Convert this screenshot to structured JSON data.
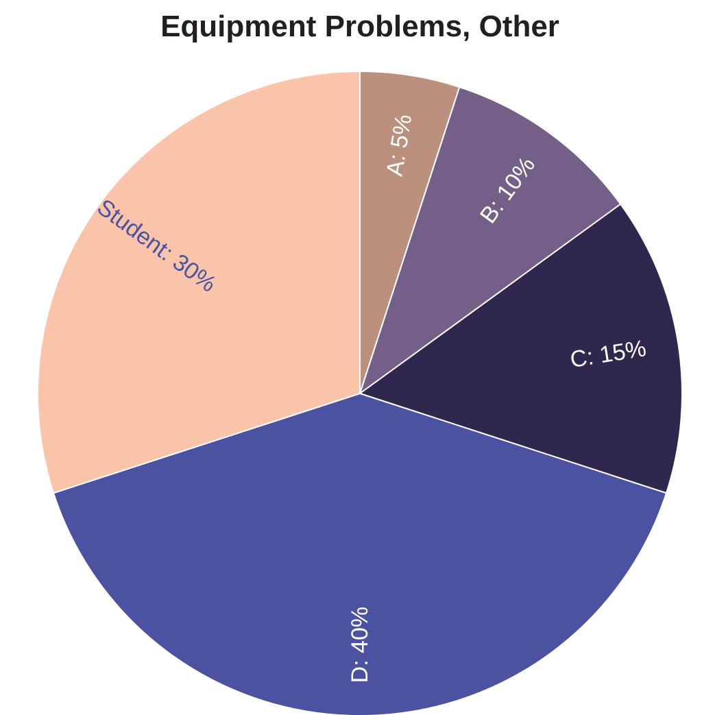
{
  "chart_data": {
    "type": "pie",
    "title": "Equipment Problems, Other",
    "slices": [
      {
        "label": "A",
        "text": "A: 5%",
        "value": 5,
        "color": "#bb917e",
        "label_color": "#ffffff"
      },
      {
        "label": "B",
        "text": "B: 10%",
        "value": 10,
        "color": "#745f89",
        "label_color": "#ffffff"
      },
      {
        "label": "C",
        "text": "C: 15%",
        "value": 15,
        "color": "#2f274d",
        "label_color": "#ffffff"
      },
      {
        "label": "D",
        "text": "D: 40%",
        "value": 40,
        "color": "#4b52a2",
        "label_color": "#ffffff"
      },
      {
        "label": "Student",
        "text": "Student: 30%",
        "value": 30,
        "color": "#fac4aa",
        "label_color": "#4b52a2"
      }
    ],
    "start_angle": "12 o'clock",
    "direction": "clockwise",
    "legend": "none"
  }
}
